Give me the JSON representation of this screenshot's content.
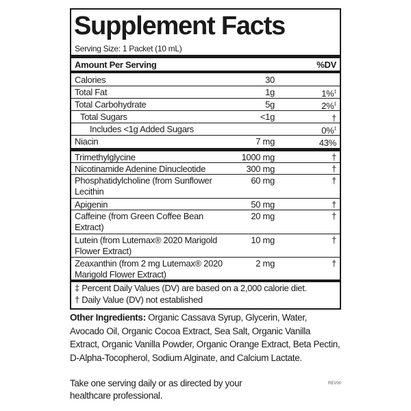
{
  "title": "Supplement Facts",
  "serving_size": "Serving Size: 1 Packet (10 mL)",
  "header": {
    "amount": "Amount Per Serving",
    "dv": "%DV"
  },
  "nutrients": [
    {
      "name": "Calories",
      "amount": "30",
      "dv": "",
      "mark": ""
    },
    {
      "name": "Total Fat",
      "amount": "1g",
      "dv": "1%",
      "mark": "‡"
    },
    {
      "name": "Total Carbohydrate",
      "amount": "5g",
      "dv": "2%",
      "mark": "‡"
    },
    {
      "name": "Total Sugars",
      "amount": "<1g",
      "dv": "†",
      "mark": ""
    },
    {
      "name": "Includes <1g Added Sugars",
      "amount": "",
      "dv": "0%",
      "mark": "‡"
    },
    {
      "name": "Niacin",
      "amount": "7 mg",
      "dv": "43%",
      "mark": ""
    }
  ],
  "ingredients": [
    {
      "name": "Trimethylglycine",
      "amount": "1000 mg",
      "dv": "†"
    },
    {
      "name": "Nicotinamide Adenine Dinucleotide",
      "amount": "300 mg",
      "dv": "†"
    },
    {
      "name": "Phosphatidylcholine (from Sunflower Lecithin",
      "amount": "60 mg",
      "dv": "†"
    },
    {
      "name": "Apigenin",
      "amount": "50 mg",
      "dv": "†"
    },
    {
      "name": "Caffeine (from Green Coffee Bean Extract)",
      "amount": "20 mg",
      "dv": "†"
    },
    {
      "name": "Lutein (from Lutemax® 2020 Marigold Flower Extract)",
      "amount": "10 mg",
      "dv": "†"
    },
    {
      "name": "Zeaxanthin (from 2 mg Lutemax® 2020 Marigold Flower Extract)",
      "amount": "2 mg",
      "dv": "†"
    }
  ],
  "footnotes": [
    "‡ Percent Daily Values (DV) are based on a 2,000 calorie diet.",
    "† Daily Value (DV) not established"
  ],
  "other_ingredients": {
    "label": "Other Ingredients:",
    "text": " Organic Cassava Syrup, Glycerin, Water, Avocado Oil, Organic Cocoa Extract, Sea Salt, Organic Vanilla Extract, Organic Vanilla Powder, Organic Orange Extract, Beta Pectin, D-Alpha-Tocopherol, Sodium Alginate, and Calcium Lactate."
  },
  "directions": "Take one serving daily or as directed by your healthcare professional.",
  "revision": "REV00"
}
